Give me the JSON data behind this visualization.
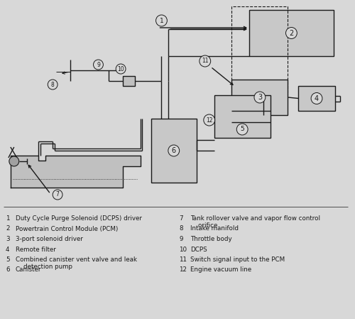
{
  "bg_color": "#e8e8e8",
  "line_color": "#1a1a1a",
  "legend_items_left": [
    {
      "num": "1",
      "text": "Duty Cycle Purge Solenoid (DCPS) driver"
    },
    {
      "num": "2",
      "text": "Powertrain Control Module (PCM)"
    },
    {
      "num": "3",
      "text": "3-port solenoid driver"
    },
    {
      "num": "4",
      "text": "Remote filter"
    },
    {
      "num": "5",
      "text": "Combined canister vent valve and leak\n    detection pump"
    },
    {
      "num": "6",
      "text": "Canister"
    }
  ],
  "legend_items_right": [
    {
      "num": "7",
      "text": "Tank rollover valve and vapor flow control\n    orifice"
    },
    {
      "num": "8",
      "text": "Intake manifold"
    },
    {
      "num": "9",
      "text": "Throttle body"
    },
    {
      "num": "10",
      "text": "DCPS"
    },
    {
      "num": "11",
      "text": "Switch signal input to the PCM"
    },
    {
      "num": "12",
      "text": "Engine vacuum line"
    }
  ]
}
